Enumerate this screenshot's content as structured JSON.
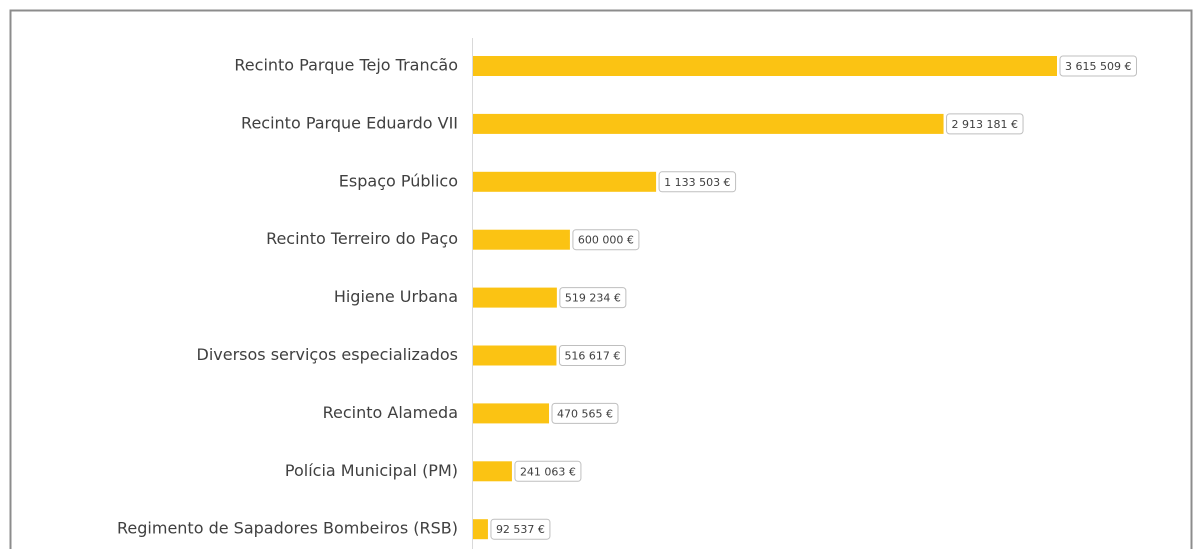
{
  "chart_data": {
    "type": "bar",
    "orientation": "horizontal",
    "color": "#fbc313",
    "categories": [
      "Recinto Parque Tejo Trancão",
      "Recinto Parque Eduardo VII",
      "Espaço Público",
      "Recinto Terreiro do Paço",
      "Higiene Urbana",
      "Diversos serviços especializados",
      "Recinto Alameda",
      "Polícia Municipal (PM)",
      "Regimento de Sapadores Bombeiros (RSB)"
    ],
    "values": [
      3615509,
      2913181,
      1133503,
      600000,
      519234,
      516617,
      470565,
      241063,
      92537
    ],
    "value_labels": [
      "3 615 509 €",
      "2 913 181 €",
      "1 133 503 €",
      "600 000 €",
      "519 234 €",
      "516 617 €",
      "470 565 €",
      "241 063 €",
      "92 537 €"
    ]
  }
}
